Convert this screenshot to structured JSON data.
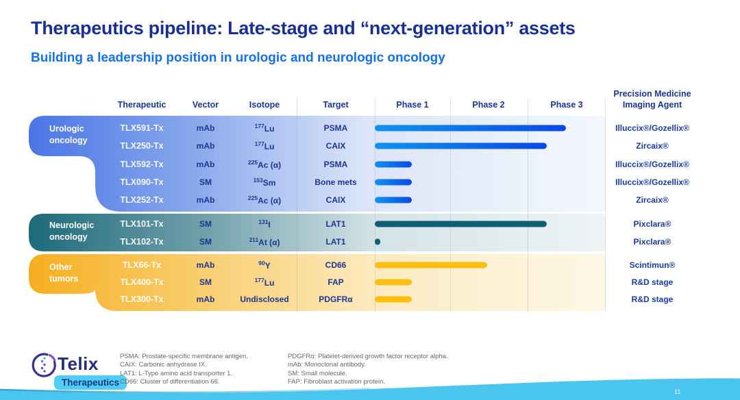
{
  "slide": {
    "title": "Therapeutics pipeline: Late-stage and “next-generation” assets",
    "subtitle": "Building a leadership position in urologic and neurologic oncology",
    "page_number": "11"
  },
  "pipeline": {
    "headers": {
      "therapeutic": "Therapeutic",
      "vector": "Vector",
      "isotope": "Isotope",
      "target": "Target",
      "phase1": "Phase 1",
      "phase2": "Phase 2",
      "phase3": "Phase 3",
      "imaging_agent": "Precision Medicine\nImaging Agent"
    },
    "phase_scale_max": 3,
    "groups": [
      {
        "label": "Urologic\noncology",
        "accent": "#4a75e5",
        "bar": {
          "from": "#0f93f0",
          "to": "#0b49e6"
        },
        "rows": [
          {
            "name": "TLX591-Tx",
            "vector": "mAb",
            "isotope_sup": "177",
            "isotope": "Lu",
            "target": "PSMA",
            "phase_progress": 2.49,
            "agent": "Illuccix®/Gozellix®"
          },
          {
            "name": "TLX250-Tx",
            "vector": "mAb",
            "isotope_sup": "177",
            "isotope": "Lu",
            "target": "CAIX",
            "phase_progress": 2.24,
            "agent": "Zircaix®"
          },
          {
            "name": "TLX592-Tx",
            "vector": "mAb",
            "isotope_sup": "225",
            "isotope": "Ac (α)",
            "target": "PSMA",
            "phase_progress": 0.48,
            "agent": "Illuccix®/Gozellix®"
          },
          {
            "name": "TLX090-Tx",
            "vector": "SM",
            "isotope_sup": "153",
            "isotope": "Sm",
            "target": "Bone mets",
            "phase_progress": 0.48,
            "agent": "Illuccix®/Gozellix®"
          },
          {
            "name": "TLX252-Tx",
            "vector": "mAb",
            "isotope_sup": "225",
            "isotope": "Ac (α)",
            "target": "CAIX",
            "phase_progress": 0.48,
            "agent": "Zircaix®"
          }
        ]
      },
      {
        "label": "Neurologic\noncology",
        "accent": "#1d6a7a",
        "bar": {
          "solid": "#0e5f72"
        },
        "rows": [
          {
            "name": "TLX101-Tx",
            "vector": "SM",
            "isotope_sup": "131",
            "isotope": "I",
            "target": "LAT1",
            "phase_progress": 2.24,
            "agent": "Pixclara®"
          },
          {
            "name": "TLX102-Tx",
            "vector": "SM",
            "isotope_sup": "211",
            "isotope": "At (α)",
            "target": "LAT1",
            "phase_progress": 0.07,
            "agent": "Pixclara®"
          }
        ]
      },
      {
        "label": "Other\ntumors",
        "accent": "#f6ae1f",
        "bar": {
          "solid": "#fcbf0f"
        },
        "rows": [
          {
            "name": "TLX66-Tx",
            "vector": "mAb",
            "isotope_sup": "90",
            "isotope": "Y",
            "target": "CD66",
            "phase_progress": 1.46,
            "agent": "Scintimun®"
          },
          {
            "name": "TLX400-Tx",
            "vector": "SM",
            "isotope_sup": "177",
            "isotope": "Lu",
            "target": "FAP",
            "phase_progress": 0.48,
            "agent": "R&D stage"
          },
          {
            "name": "TLX300-Tx",
            "vector": "mAb",
            "isotope_sup": "",
            "isotope": "Undisclosed",
            "target": "PDGFRα",
            "phase_progress": 0.48,
            "agent": "R&D stage"
          }
        ]
      }
    ]
  },
  "footnotes": {
    "col1": [
      "PSMA: Prostate-specific membrane antigen.",
      "CAIX: Carbonic anhydrase IX.",
      "LAT1: L-Type amino acid transporter 1.",
      "CD66: Cluster of differentiation 66."
    ],
    "col2": [
      "PDGFRα: Platelet-derived growth factor receptor alpha.",
      "mAb: Monoclonal antibody.",
      "SM: Small molecule.",
      "FAP: Fibroblast activation protein."
    ]
  },
  "footer": {
    "brand": "Telix",
    "brand_badge": "Therapeutics"
  },
  "colors": {
    "title": "#1a2f96",
    "subtitle": "#1472e8",
    "table_text": "#1c3590",
    "wave": "#49c5ee",
    "badge_bg": "#4fcdf4"
  }
}
